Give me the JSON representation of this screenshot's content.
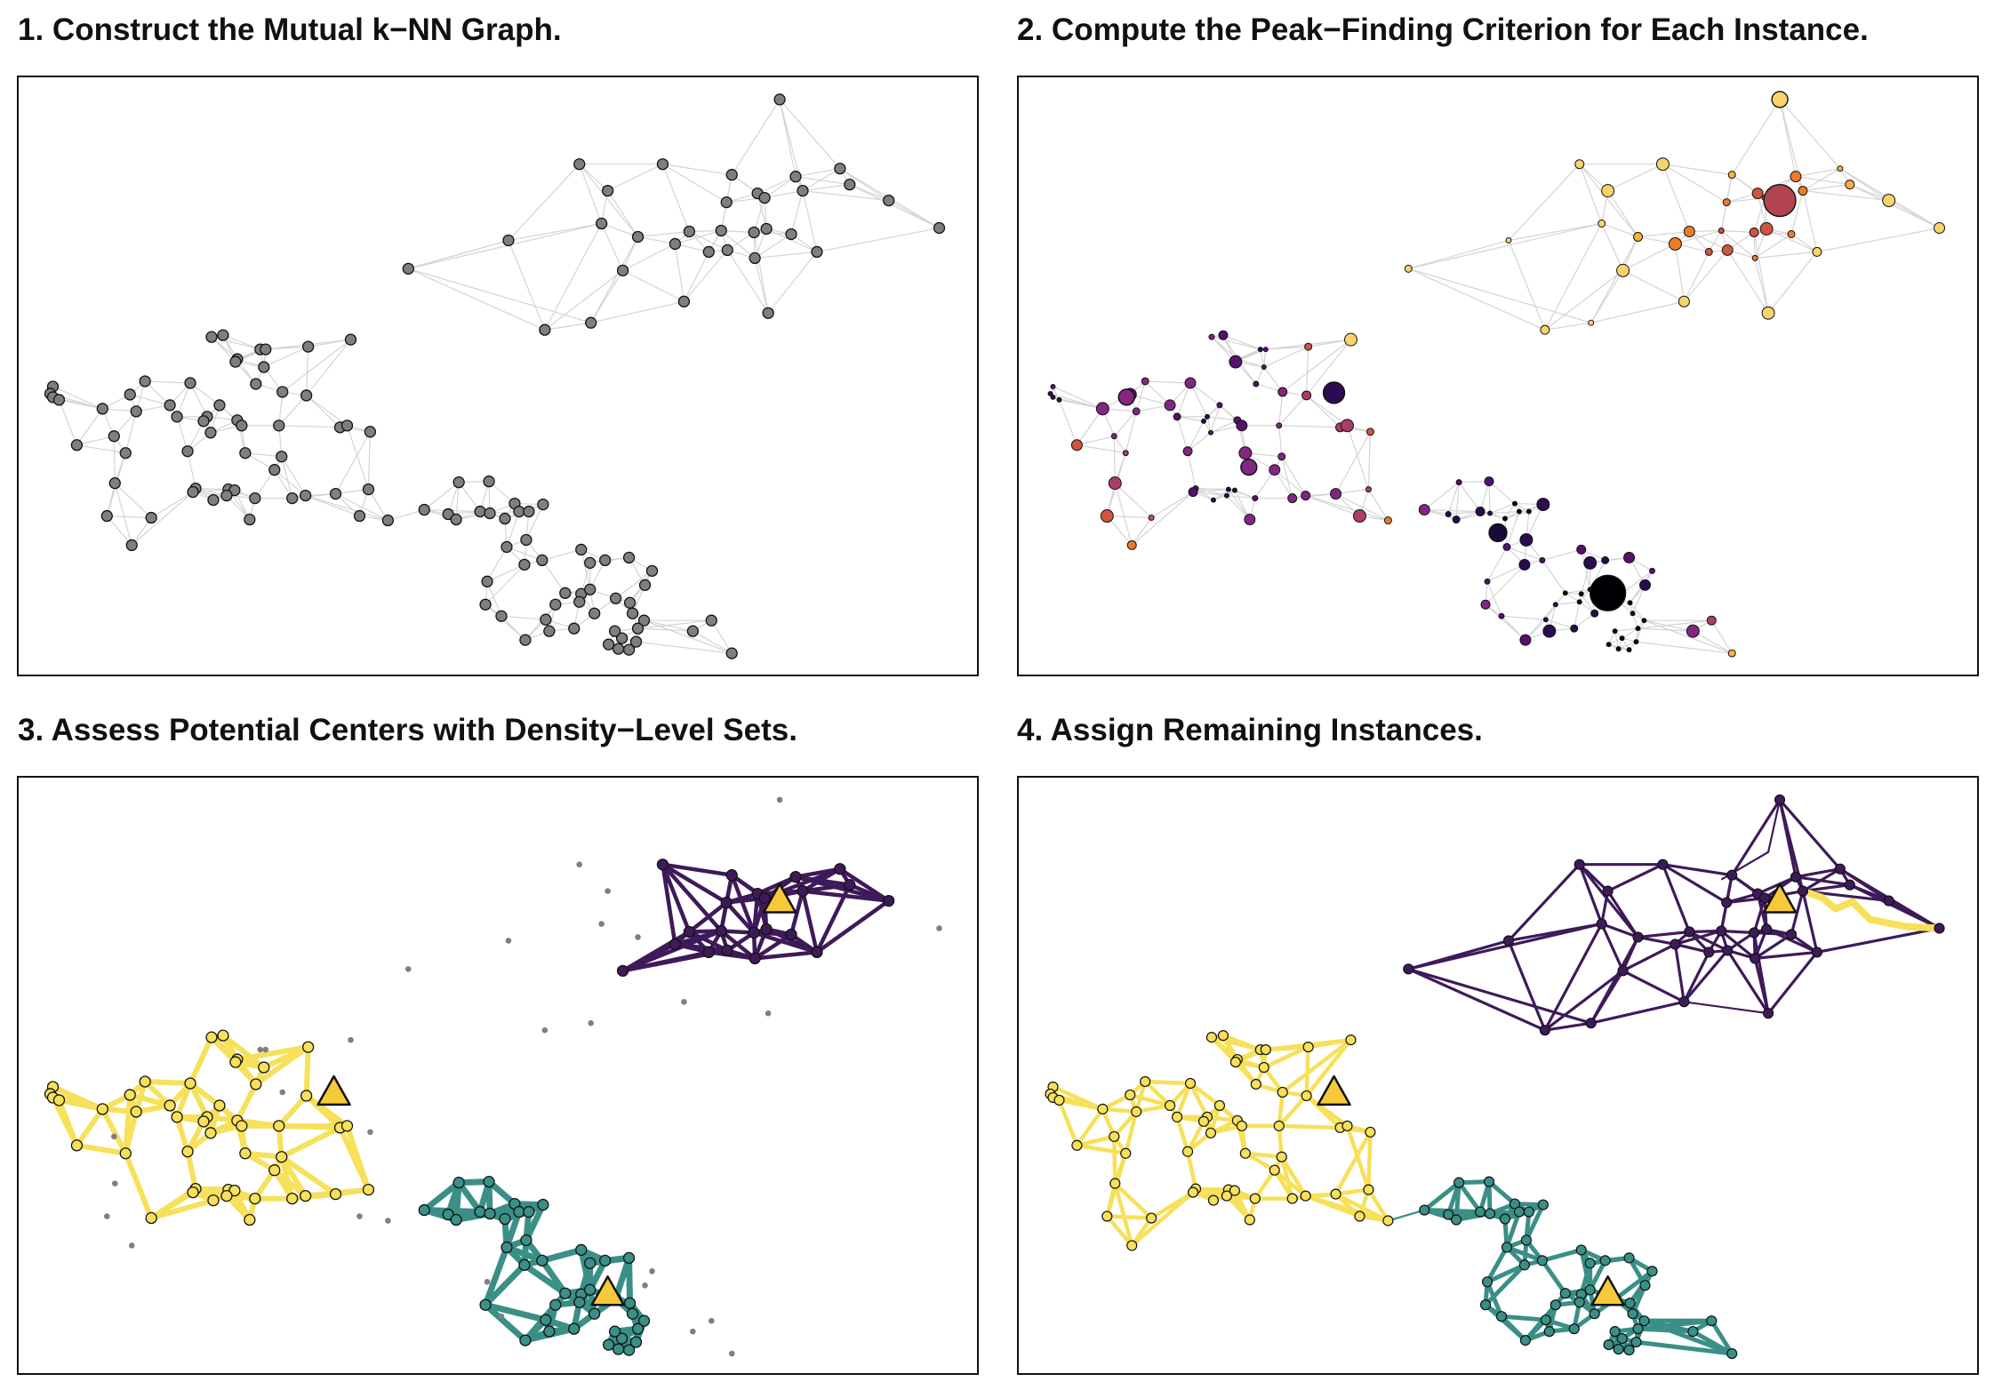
{
  "panels": [
    {
      "title": "1. Construct the Mutual k−NN Graph."
    },
    {
      "title": "2. Compute the Peak−Finding Criterion for Each Instance."
    },
    {
      "title": "3. Assess Potential Centers with Density−Level Sets."
    },
    {
      "title": "4. Assign Remaining Instances."
    }
  ],
  "colors": {
    "edge_gray": "#d4d4d4",
    "node_gray": "#7f7f7f",
    "cluster_top": "#3e1a5a",
    "cluster_left": "#f7e05a",
    "cluster_bottom": "#3a8f86",
    "center_marker": "#f5c93a",
    "outline": "#111111"
  }
}
